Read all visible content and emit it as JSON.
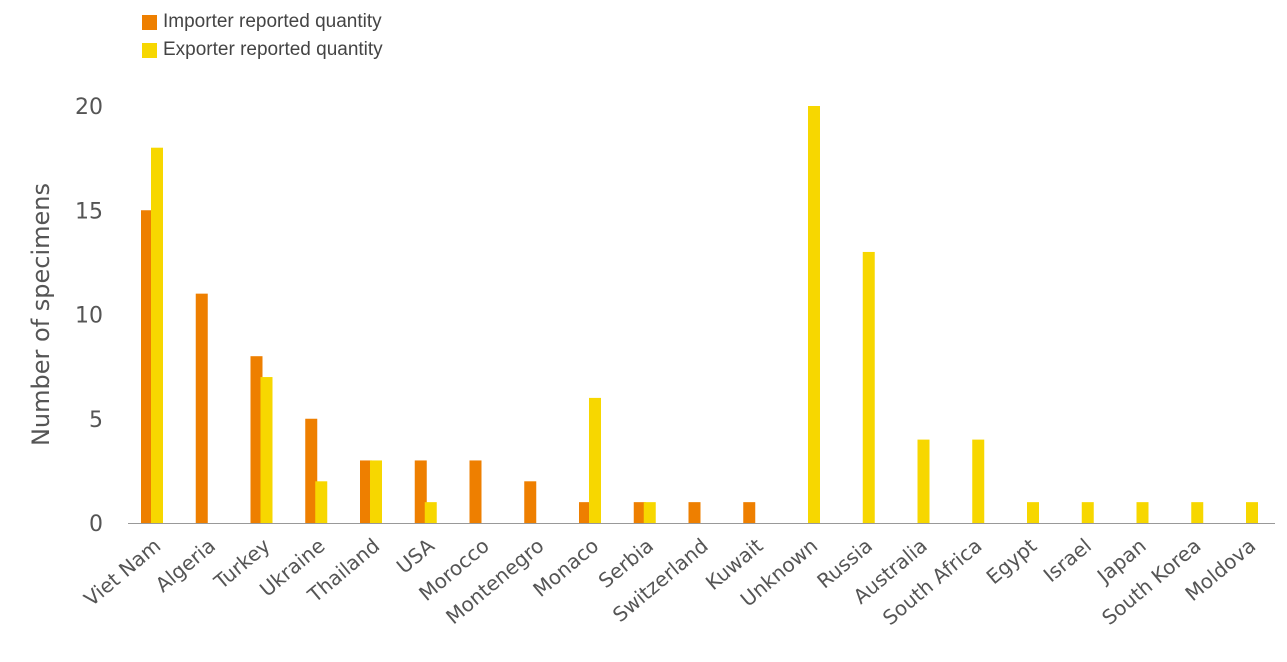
{
  "chart_data": {
    "type": "bar",
    "title": "",
    "xlabel": "",
    "ylabel": "Number of specimens",
    "ylim": [
      0,
      20
    ],
    "yticks": [
      0,
      5,
      10,
      15,
      20
    ],
    "grid": false,
    "legend_position": "top-left",
    "categories": [
      "Viet Nam",
      "Algeria",
      "Turkey",
      "Ukraine",
      "Thailand",
      "USA",
      "Morocco",
      "Montenegro",
      "Monaco",
      "Serbia",
      "Switzerland",
      "Kuwait",
      "Unknown",
      "Russia",
      "Australia",
      "South Africa",
      "Egypt",
      "Israel",
      "Japan",
      "South Korea",
      "Moldova"
    ],
    "series": [
      {
        "name": "Importer reported quantity",
        "color": "#EE7F00",
        "values": [
          15,
          11,
          8,
          5,
          3,
          3,
          3,
          2,
          1,
          1,
          1,
          1,
          0,
          0,
          0,
          0,
          0,
          0,
          0,
          0,
          0
        ]
      },
      {
        "name": "Exporter reported quantity",
        "color": "#F7D700",
        "values": [
          18,
          0,
          7,
          2,
          3,
          1,
          0,
          0,
          6,
          1,
          0,
          0,
          20,
          13,
          4,
          4,
          1,
          1,
          1,
          1,
          1
        ]
      }
    ]
  }
}
